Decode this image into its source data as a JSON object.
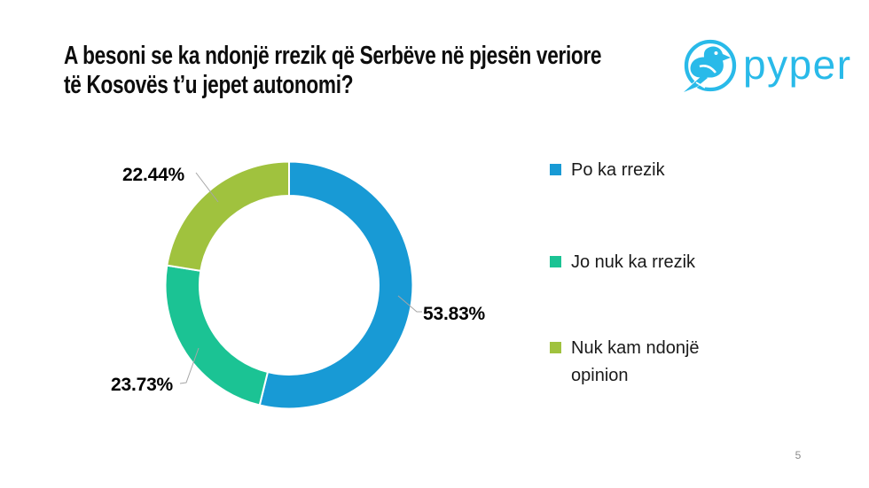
{
  "slide": {
    "title_line1": "A besoni se ka ndonjë rrezik që Serbëve në pjesën veriore",
    "title_line2": "të Kosovës t’u jepet autonomi?",
    "page_number": "5"
  },
  "logo": {
    "text": "pyper",
    "color": "#29BAE9"
  },
  "chart_data": {
    "type": "pie",
    "subtype": "donut",
    "title": "A besoni se ka ndonjë rrezik që Serbëve në pjesën veriore të Kosovës t’u jepet autonomi?",
    "categories": [
      "Po ka rrezik",
      "Jo nuk ka rrezik",
      "Nuk kam ndonjë opinion"
    ],
    "values": [
      53.83,
      23.73,
      22.44
    ],
    "labels": [
      "53.83%",
      "23.73%",
      "22.44%"
    ],
    "colors": [
      "#189AD5",
      "#1BC394",
      "#A0C23E"
    ],
    "start_angle_deg": 0,
    "direction": "clockwise",
    "donut_hole_ratio": 0.72,
    "legend_position": "right",
    "leader_line_color": "#A6A6A6"
  },
  "legend": {
    "items": [
      {
        "label": "Po ka rrezik",
        "color": "#189AD5"
      },
      {
        "label": "Jo nuk ka rrezik",
        "color": "#1BC394"
      },
      {
        "label": "Nuk kam ndonjë opinion",
        "color": "#A0C23E"
      }
    ]
  }
}
